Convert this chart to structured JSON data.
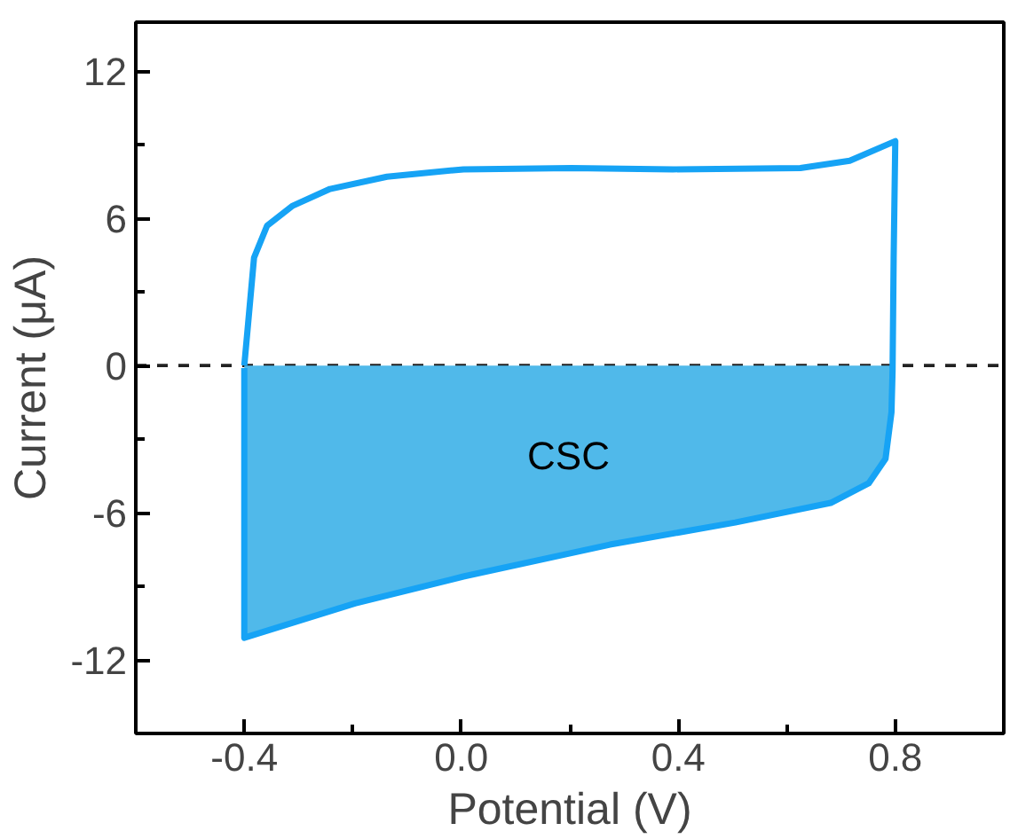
{
  "chart_data": {
    "type": "line",
    "xlabel": "Potential (V)",
    "ylabel": "Current (μA)",
    "xlim": [
      -0.6,
      1.0
    ],
    "ylim": [
      -15,
      14
    ],
    "xticks": [
      -0.4,
      {
        "value": -0.2,
        "label": null
      },
      {
        "value": 0,
        "label": "0.0"
      },
      {
        "value": 0.2,
        "label": null
      },
      0.4,
      {
        "value": 0.6,
        "label": null
      },
      0.8
    ],
    "yticks": [
      -12,
      {
        "value": -9,
        "label": null
      },
      -6,
      {
        "value": -3,
        "label": null
      },
      0,
      {
        "value": 3,
        "label": null
      },
      6,
      {
        "value": 9,
        "label": null
      },
      12
    ],
    "grid": false,
    "marker": "none",
    "line_style": "solid",
    "series": [
      {
        "color": "#16a3f5",
        "x": [
          -0.4,
          -0.393,
          -0.382,
          -0.358,
          -0.312,
          -0.242,
          -0.137,
          0.004,
          0.203,
          0.39,
          0.625,
          0.716,
          0.8,
          0.797,
          0.795,
          0.793,
          0.782,
          0.751,
          0.681,
          0.505,
          0.274,
          0.004,
          -0.196,
          -0.4,
          -0.4
        ],
        "values": [
          0,
          1.7,
          4.4,
          5.7,
          6.5,
          7.2,
          7.7,
          8.0,
          8.05,
          8.0,
          8.05,
          8.35,
          9.15,
          4.4,
          -0.2,
          -1.9,
          -3.8,
          -4.8,
          -5.6,
          -6.4,
          -7.3,
          -8.6,
          -9.7,
          -11.1,
          -0.1
        ]
      },
      {
        "type": "area",
        "color": "#50b9ea",
        "x": [
          -0.4,
          -0.196,
          0.004,
          0.274,
          0.505,
          0.681,
          0.751,
          0.782,
          0.793,
          0.795
        ],
        "values": [
          -11.1,
          -9.7,
          -8.6,
          -7.3,
          -6.4,
          -5.6,
          -4.8,
          -3.8,
          -1.9,
          -0.2
        ]
      }
    ],
    "ref_lines": [
      {
        "axis": "y",
        "value": 0,
        "color": "#222222",
        "line_style": "dashed"
      }
    ],
    "annotations": [
      "CSC"
    ]
  }
}
